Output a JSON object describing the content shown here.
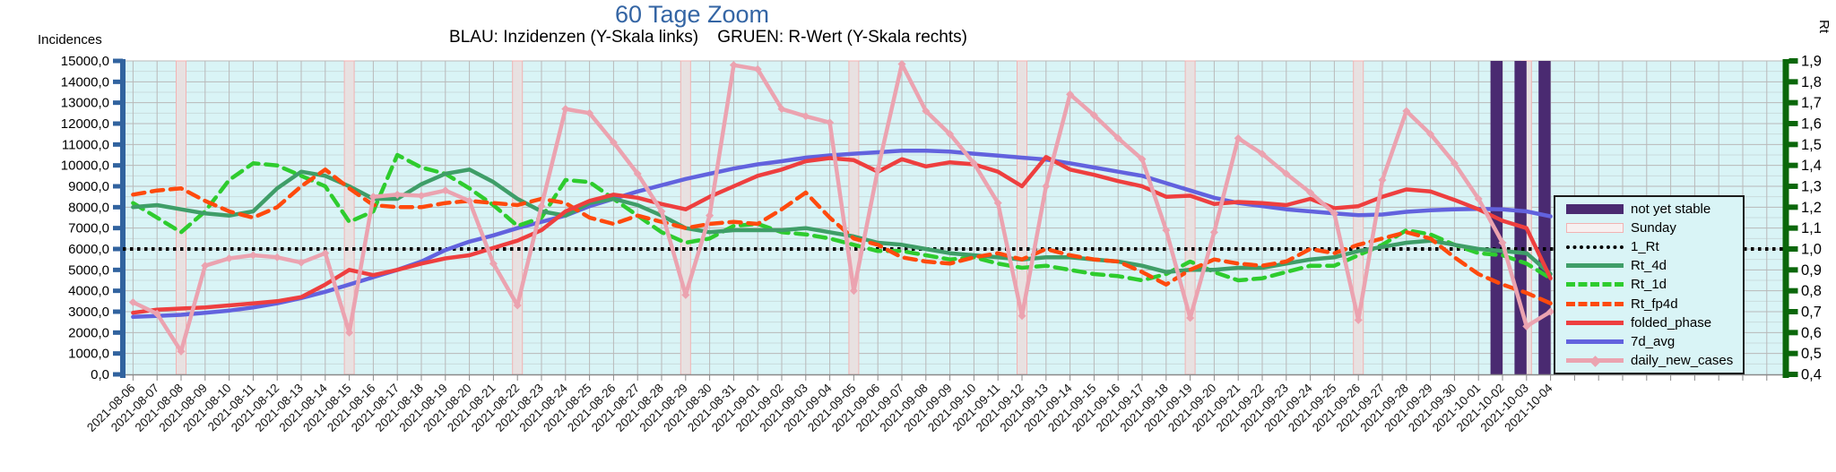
{
  "header": {
    "title": "60 Tage Zoom",
    "subtitle": "BLAU: Inzidenzen (Y-Skala links)    GRUEN: R-Wert (Y-Skala rechts)"
  },
  "axes": {
    "left": {
      "label": "Incidences",
      "tick_labels": [
        "0,0",
        "1000,0",
        "2000,0",
        "3000,0",
        "4000,0",
        "5000,0",
        "6000,0",
        "7000,0",
        "8000,0",
        "9000,0",
        "10000,0",
        "11000,0",
        "12000,0",
        "13000,0",
        "14000,0",
        "15000,0"
      ]
    },
    "right": {
      "label": "Rt",
      "tick_labels": [
        "0,4",
        "0,5",
        "0,6",
        "0,7",
        "0,8",
        "0,9",
        "1,0",
        "1,1",
        "1,2",
        "1,3",
        "1,4",
        "1,5",
        "1,6",
        "1,7",
        "1,8",
        "1,9"
      ]
    }
  },
  "legend": {
    "items": [
      {
        "id": "not_yet_stable",
        "label": "not yet stable",
        "swatch": "bar",
        "color": "#4a2a71"
      },
      {
        "id": "sunday",
        "label": "Sunday",
        "swatch": "band",
        "color": "#f2b3b3"
      },
      {
        "id": "1_Rt",
        "label": "1_Rt",
        "swatch": "dotted",
        "color": "#000000"
      },
      {
        "id": "Rt_4d",
        "label": "Rt_4d",
        "swatch": "solid",
        "color": "#3f9e68"
      },
      {
        "id": "Rt_1d",
        "label": "Rt_1d",
        "swatch": "dashed",
        "color": "#2ecc2e"
      },
      {
        "id": "Rt_fp4d",
        "label": "Rt_fp4d",
        "swatch": "dashed",
        "color": "#ff4a0d"
      },
      {
        "id": "folded_phase",
        "label": "folded_phase",
        "swatch": "solid",
        "color": "#ee3f3f"
      },
      {
        "id": "7d_avg",
        "label": "7d_avg",
        "swatch": "solid",
        "color": "#6262de"
      },
      {
        "id": "daily_new_cases",
        "label": "daily_new_cases",
        "swatch": "solid-diamond",
        "color": "#eba3b0"
      }
    ]
  },
  "colors": {
    "title": "#3465a4",
    "plot_bg": "#d9f4f6",
    "grid_major": "#b9b9b9",
    "grid_minor": "#c9dcdd",
    "axis_left": "#31639f",
    "axis_right": "#0b670b",
    "axis_bottom": "#8a8a8a",
    "sunday_fill": "#e8e1e1",
    "sunday_edge": "#f2b3b3",
    "stable_bar": "#4a2a71",
    "tick_text": "#000000"
  },
  "chart_data": {
    "type": "line",
    "title": "60 Tage Zoom",
    "x_label_rotation_deg": -45,
    "y_left_range": [
      0,
      15000
    ],
    "y_right_range": [
      0.4,
      1.9
    ],
    "grid": "both",
    "legend_position": "inside-right",
    "dates": [
      "2021-08-06",
      "2021-08-07",
      "2021-08-08",
      "2021-08-09",
      "2021-08-10",
      "2021-08-11",
      "2021-08-12",
      "2021-08-13",
      "2021-08-14",
      "2021-08-15",
      "2021-08-16",
      "2021-08-17",
      "2021-08-18",
      "2021-08-19",
      "2021-08-20",
      "2021-08-21",
      "2021-08-22",
      "2021-08-23",
      "2021-08-24",
      "2021-08-25",
      "2021-08-26",
      "2021-08-27",
      "2021-08-28",
      "2021-08-29",
      "2021-08-30",
      "2021-08-31",
      "2021-09-01",
      "2021-09-02",
      "2021-09-03",
      "2021-09-04",
      "2021-09-05",
      "2021-09-06",
      "2021-09-07",
      "2021-09-08",
      "2021-09-09",
      "2021-09-10",
      "2021-09-11",
      "2021-09-12",
      "2021-09-13",
      "2021-09-14",
      "2021-09-15",
      "2021-09-16",
      "2021-09-17",
      "2021-09-18",
      "2021-09-19",
      "2021-09-20",
      "2021-09-21",
      "2021-09-22",
      "2021-09-23",
      "2021-09-24",
      "2021-09-25",
      "2021-09-26",
      "2021-09-27",
      "2021-09-28",
      "2021-09-29",
      "2021-09-30",
      "2021-10-01",
      "2021-10-02",
      "2021-10-03",
      "2021-10-04"
    ],
    "sundays": [
      "2021-08-08",
      "2021-08-15",
      "2021-08-22",
      "2021-08-29",
      "2021-09-05",
      "2021-09-12",
      "2021-09-19",
      "2021-09-26",
      "2021-10-03"
    ],
    "not_yet_stable_dates": [
      "2021-10-02",
      "2021-10-03",
      "2021-10-04"
    ],
    "series": [
      {
        "name": "1_Rt",
        "axis": "right",
        "style": "dotted",
        "color": "#000000",
        "constant": 1.0
      },
      {
        "name": "7d_avg",
        "axis": "left",
        "style": "solid",
        "color": "#6262de",
        "values": [
          2750,
          2800,
          2850,
          2950,
          3050,
          3200,
          3400,
          3650,
          3950,
          4300,
          4650,
          5000,
          5400,
          5950,
          6350,
          6650,
          7000,
          7300,
          7600,
          8050,
          8400,
          8750,
          9050,
          9350,
          9600,
          9850,
          10050,
          10200,
          10370,
          10480,
          10560,
          10630,
          10700,
          10700,
          10660,
          10560,
          10470,
          10370,
          10280,
          10100,
          9900,
          9700,
          9500,
          9150,
          8800,
          8450,
          8200,
          8050,
          7900,
          7800,
          7700,
          7620,
          7650,
          7780,
          7850,
          7900,
          7920,
          7900,
          7800,
          7560
        ]
      },
      {
        "name": "Rt_1d",
        "axis": "right",
        "style": "dashed",
        "color": "#2ecc2e",
        "values": [
          1.22,
          1.15,
          1.08,
          1.18,
          1.33,
          1.41,
          1.4,
          1.35,
          1.3,
          1.13,
          1.18,
          1.45,
          1.39,
          1.36,
          1.29,
          1.21,
          1.11,
          1.15,
          1.33,
          1.32,
          1.24,
          1.16,
          1.08,
          1.03,
          1.05,
          1.11,
          1.12,
          1.08,
          1.07,
          1.05,
          1.02,
          0.99,
          0.99,
          0.97,
          0.95,
          0.96,
          0.93,
          0.91,
          0.92,
          0.9,
          0.88,
          0.87,
          0.85,
          0.88,
          0.94,
          0.89,
          0.85,
          0.86,
          0.89,
          0.92,
          0.92,
          0.97,
          1.02,
          1.09,
          1.07,
          1.02,
          0.98,
          0.97,
          0.93,
          0.86
        ]
      },
      {
        "name": "Rt_4d",
        "axis": "right",
        "style": "solid",
        "color": "#3f9e68",
        "values": [
          1.2,
          1.21,
          1.19,
          1.17,
          1.16,
          1.18,
          1.29,
          1.37,
          1.35,
          1.3,
          1.24,
          1.24,
          1.31,
          1.36,
          1.38,
          1.32,
          1.24,
          1.18,
          1.16,
          1.22,
          1.24,
          1.21,
          1.16,
          1.1,
          1.08,
          1.09,
          1.09,
          1.09,
          1.1,
          1.08,
          1.06,
          1.03,
          1.02,
          1.0,
          0.98,
          0.97,
          0.96,
          0.95,
          0.96,
          0.96,
          0.95,
          0.94,
          0.92,
          0.89,
          0.9,
          0.9,
          0.91,
          0.91,
          0.93,
          0.95,
          0.96,
          0.99,
          1.01,
          1.03,
          1.04,
          1.02,
          1.0,
          0.99,
          0.98,
          0.88
        ]
      },
      {
        "name": "Rt_fp4d",
        "axis": "right",
        "style": "dashed",
        "color": "#ff4a0d",
        "values": [
          1.26,
          1.28,
          1.29,
          1.23,
          1.18,
          1.15,
          1.2,
          1.3,
          1.38,
          1.29,
          1.21,
          1.2,
          1.2,
          1.22,
          1.23,
          1.22,
          1.21,
          1.24,
          1.22,
          1.15,
          1.12,
          1.16,
          1.13,
          1.1,
          1.12,
          1.13,
          1.12,
          1.19,
          1.27,
          1.15,
          1.05,
          1.02,
          0.96,
          0.94,
          0.93,
          0.96,
          0.98,
          0.95,
          1.0,
          0.97,
          0.95,
          0.94,
          0.89,
          0.83,
          0.9,
          0.95,
          0.93,
          0.92,
          0.94,
          1.0,
          0.98,
          1.02,
          1.05,
          1.08,
          1.05,
          0.96,
          0.88,
          0.83,
          0.79,
          0.74
        ]
      },
      {
        "name": "folded_phase",
        "axis": "left",
        "style": "solid",
        "color": "#ee3f3f",
        "values": [
          2950,
          3100,
          3150,
          3200,
          3300,
          3400,
          3500,
          3700,
          4300,
          5000,
          4750,
          5000,
          5300,
          5550,
          5700,
          6050,
          6400,
          6900,
          7800,
          8300,
          8600,
          8450,
          8150,
          7900,
          8500,
          9000,
          9500,
          9800,
          10200,
          10350,
          10250,
          9700,
          10300,
          9950,
          10150,
          10050,
          9700,
          9000,
          10400,
          9800,
          9550,
          9250,
          9000,
          8500,
          8550,
          8150,
          8250,
          8200,
          8100,
          8400,
          7950,
          8050,
          8500,
          8850,
          8750,
          8350,
          7900,
          7350,
          7000,
          4600
        ]
      },
      {
        "name": "daily_new_cases",
        "axis": "left",
        "style": "solid",
        "color": "#eba3b0",
        "marker": "diamond",
        "values": [
          3450,
          2900,
          1100,
          5200,
          5550,
          5700,
          5600,
          5350,
          5800,
          2000,
          8500,
          8600,
          8550,
          8800,
          8300,
          5300,
          3300,
          8050,
          12700,
          12500,
          11100,
          9600,
          7800,
          3800,
          7600,
          14800,
          14600,
          12700,
          12350,
          12050,
          4000,
          9800,
          14850,
          12600,
          11500,
          10100,
          8200,
          2800,
          9000,
          13400,
          12400,
          11300,
          10300,
          6900,
          2700,
          6800,
          11300,
          10550,
          9600,
          8700,
          7700,
          2600,
          9300,
          12600,
          11500,
          10100,
          8400,
          6300,
          2300,
          3000
        ]
      }
    ]
  }
}
